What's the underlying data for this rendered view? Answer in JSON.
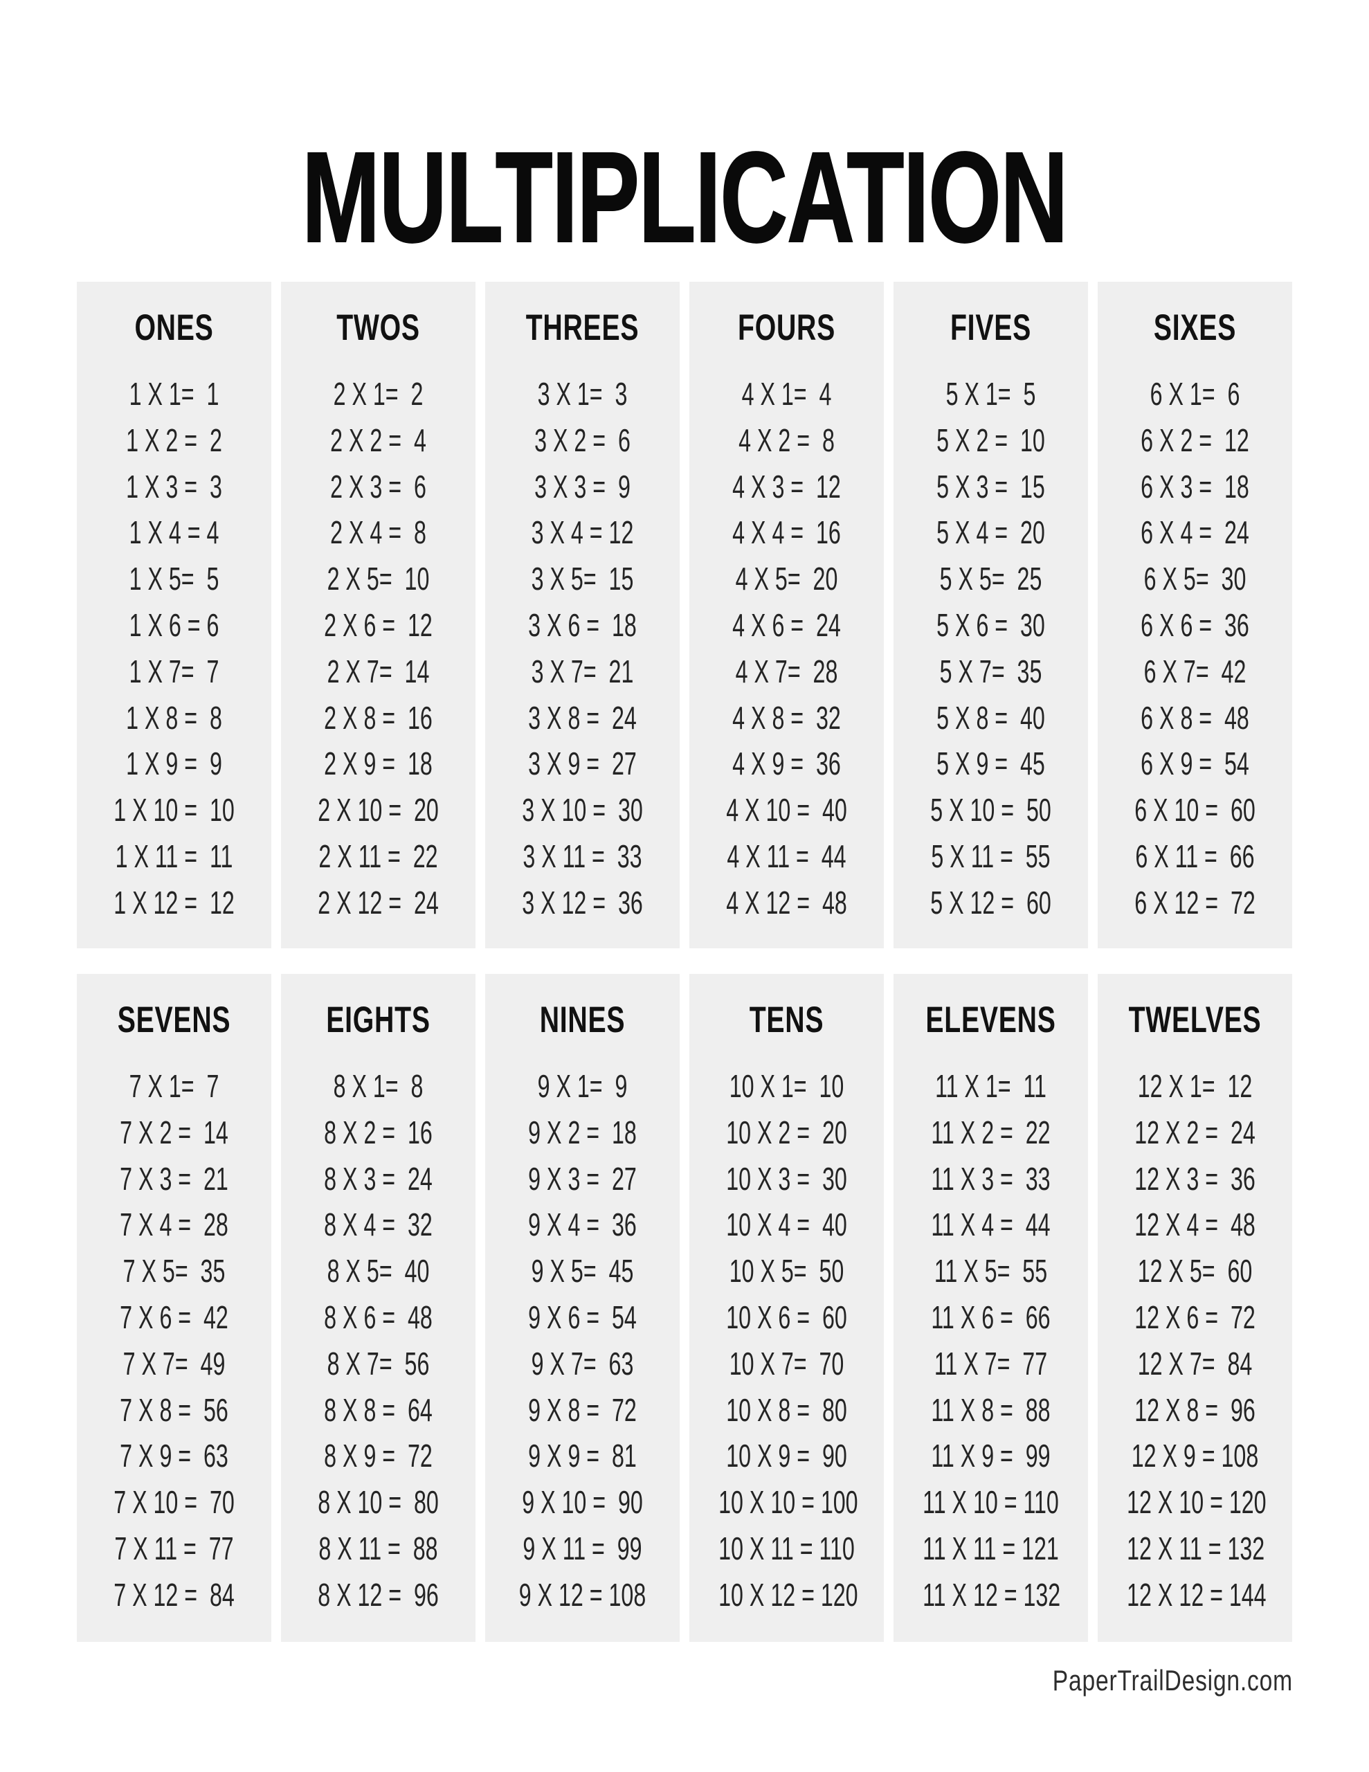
{
  "page": {
    "title": "MULTIPLICATION",
    "footer": "PaperTrailDesign.com"
  },
  "colors": {
    "background": "#ffffff",
    "card": "#efefef",
    "title_text": "#0a0a0a",
    "fact_text": "#242424",
    "footer_text": "#2d2d2d"
  },
  "groups": [
    {
      "columns": [
        {
          "header": "ONES",
          "facts": [
            "1 X 1=  1",
            "1 X 2 =  2",
            "1 X 3 =  3",
            "1 X 4 = 4",
            "1 X 5=  5",
            "1 X 6 = 6",
            "1 X 7=  7",
            "1 X 8 =  8",
            "1 X 9 =  9",
            "1 X 10 =  10",
            "1 X 11 =  11",
            "1 X 12 =  12"
          ]
        },
        {
          "header": "TWOS",
          "facts": [
            "2 X 1=  2",
            "2 X 2 =  4",
            "2 X 3 =  6",
            "2 X 4 =  8",
            "2 X 5=  10",
            "2 X 6 =  12",
            "2 X 7=  14",
            "2 X 8 =  16",
            "2 X 9 =  18",
            "2 X 10 =  20",
            "2 X 11 =  22",
            "2 X 12 =  24"
          ]
        },
        {
          "header": "THREES",
          "facts": [
            "3 X 1=  3",
            "3 X 2 =  6",
            "3 X 3 =  9",
            "3 X 4 = 12",
            "3 X 5=  15",
            "3 X 6 =  18",
            "3 X 7=  21",
            "3 X 8 =  24",
            "3 X 9 =  27",
            "3 X 10 =  30",
            "3 X 11 =  33",
            "3 X 12 =  36"
          ]
        },
        {
          "header": "FOURS",
          "facts": [
            "4 X 1=  4",
            "4 X 2 =  8",
            "4 X 3 =  12",
            "4 X 4 =  16",
            "4 X 5=  20",
            "4 X 6 =  24",
            "4 X 7=  28",
            "4 X 8 =  32",
            "4 X 9 =  36",
            "4 X 10 =  40",
            "4 X 11 =  44",
            "4 X 12 =  48"
          ]
        },
        {
          "header": "FIVES",
          "facts": [
            "5 X 1=  5",
            "5 X 2 =  10",
            "5 X 3 =  15",
            "5 X 4 =  20",
            "5 X 5=  25",
            "5 X 6 =  30",
            "5 X 7=  35",
            "5 X 8 =  40",
            "5 X 9 =  45",
            "5 X 10 =  50",
            "5 X 11 =  55",
            "5 X 12 =  60"
          ]
        },
        {
          "header": "SIXES",
          "facts": [
            "6 X 1=  6",
            "6 X 2 =  12",
            "6 X 3 =  18",
            "6 X 4 =  24",
            "6 X 5=  30",
            "6 X 6 =  36",
            "6 X 7=  42",
            "6 X 8 =  48",
            "6 X 9 =  54",
            "6 X 10 =  60",
            "6 X 11 =  66",
            "6 X 12 =  72"
          ]
        }
      ]
    },
    {
      "columns": [
        {
          "header": "SEVENS",
          "facts": [
            "7 X 1=  7",
            "7 X 2 =  14",
            "7 X 3 =  21",
            "7 X 4 =  28",
            "7 X 5=  35",
            "7 X 6 =  42",
            "7 X 7=  49",
            "7 X 8 =  56",
            "7 X 9 =  63",
            "7 X 10 =  70",
            "7 X 11 =  77",
            "7 X 12 =  84"
          ]
        },
        {
          "header": "EIGHTS",
          "facts": [
            "8 X 1=  8",
            "8 X 2 =  16",
            "8 X 3 =  24",
            "8 X 4 =  32",
            "8 X 5=  40",
            "8 X 6 =  48",
            "8 X 7=  56",
            "8 X 8 =  64",
            "8 X 9 =  72",
            "8 X 10 =  80",
            "8 X 11 =  88",
            "8 X 12 =  96"
          ]
        },
        {
          "header": "NINES",
          "facts": [
            "9 X 1=  9",
            "9 X 2 =  18",
            "9 X 3 =  27",
            "9 X 4 =  36",
            "9 X 5=  45",
            "9 X 6 =  54",
            "9 X 7=  63",
            "9 X 8 =  72",
            "9 X 9 =  81",
            "9 X 10 =  90",
            "9 X 11 =  99",
            "9 X 12 = 108"
          ]
        },
        {
          "header": "TENS",
          "facts": [
            "10 X 1=  10",
            "10 X 2 =  20",
            "10 X 3 =  30",
            "10 X 4 =  40",
            "10 X 5=  50",
            "10 X 6 =  60",
            "10 X 7=  70",
            "10 X 8 =  80",
            "10 X 9 =  90",
            "10 X 10 = 100",
            "10 X 11 = 110",
            "10 X 12 = 120"
          ]
        },
        {
          "header": "ELEVENS",
          "facts": [
            "11 X 1=  11",
            "11 X 2 =  22",
            "11 X 3 =  33",
            "11 X 4 =  44",
            "11 X 5=  55",
            "11 X 6 =  66",
            "11 X 7=  77",
            "11 X 8 =  88",
            "11 X 9 =  99",
            "11 X 10 = 110",
            "11 X 11 = 121",
            "11 X 12 = 132"
          ]
        },
        {
          "header": "TWELVES",
          "facts": [
            "12 X 1=  12",
            "12 X 2 =  24",
            "12 X 3 =  36",
            "12 X 4 =  48",
            "12 X 5=  60",
            "12 X 6 =  72",
            "12 X 7=  84",
            "12 X 8 =  96",
            "12 X 9 = 108",
            "12 X 10 = 120",
            "12 X 11 = 132",
            "12 X 12 = 144"
          ]
        }
      ]
    }
  ]
}
